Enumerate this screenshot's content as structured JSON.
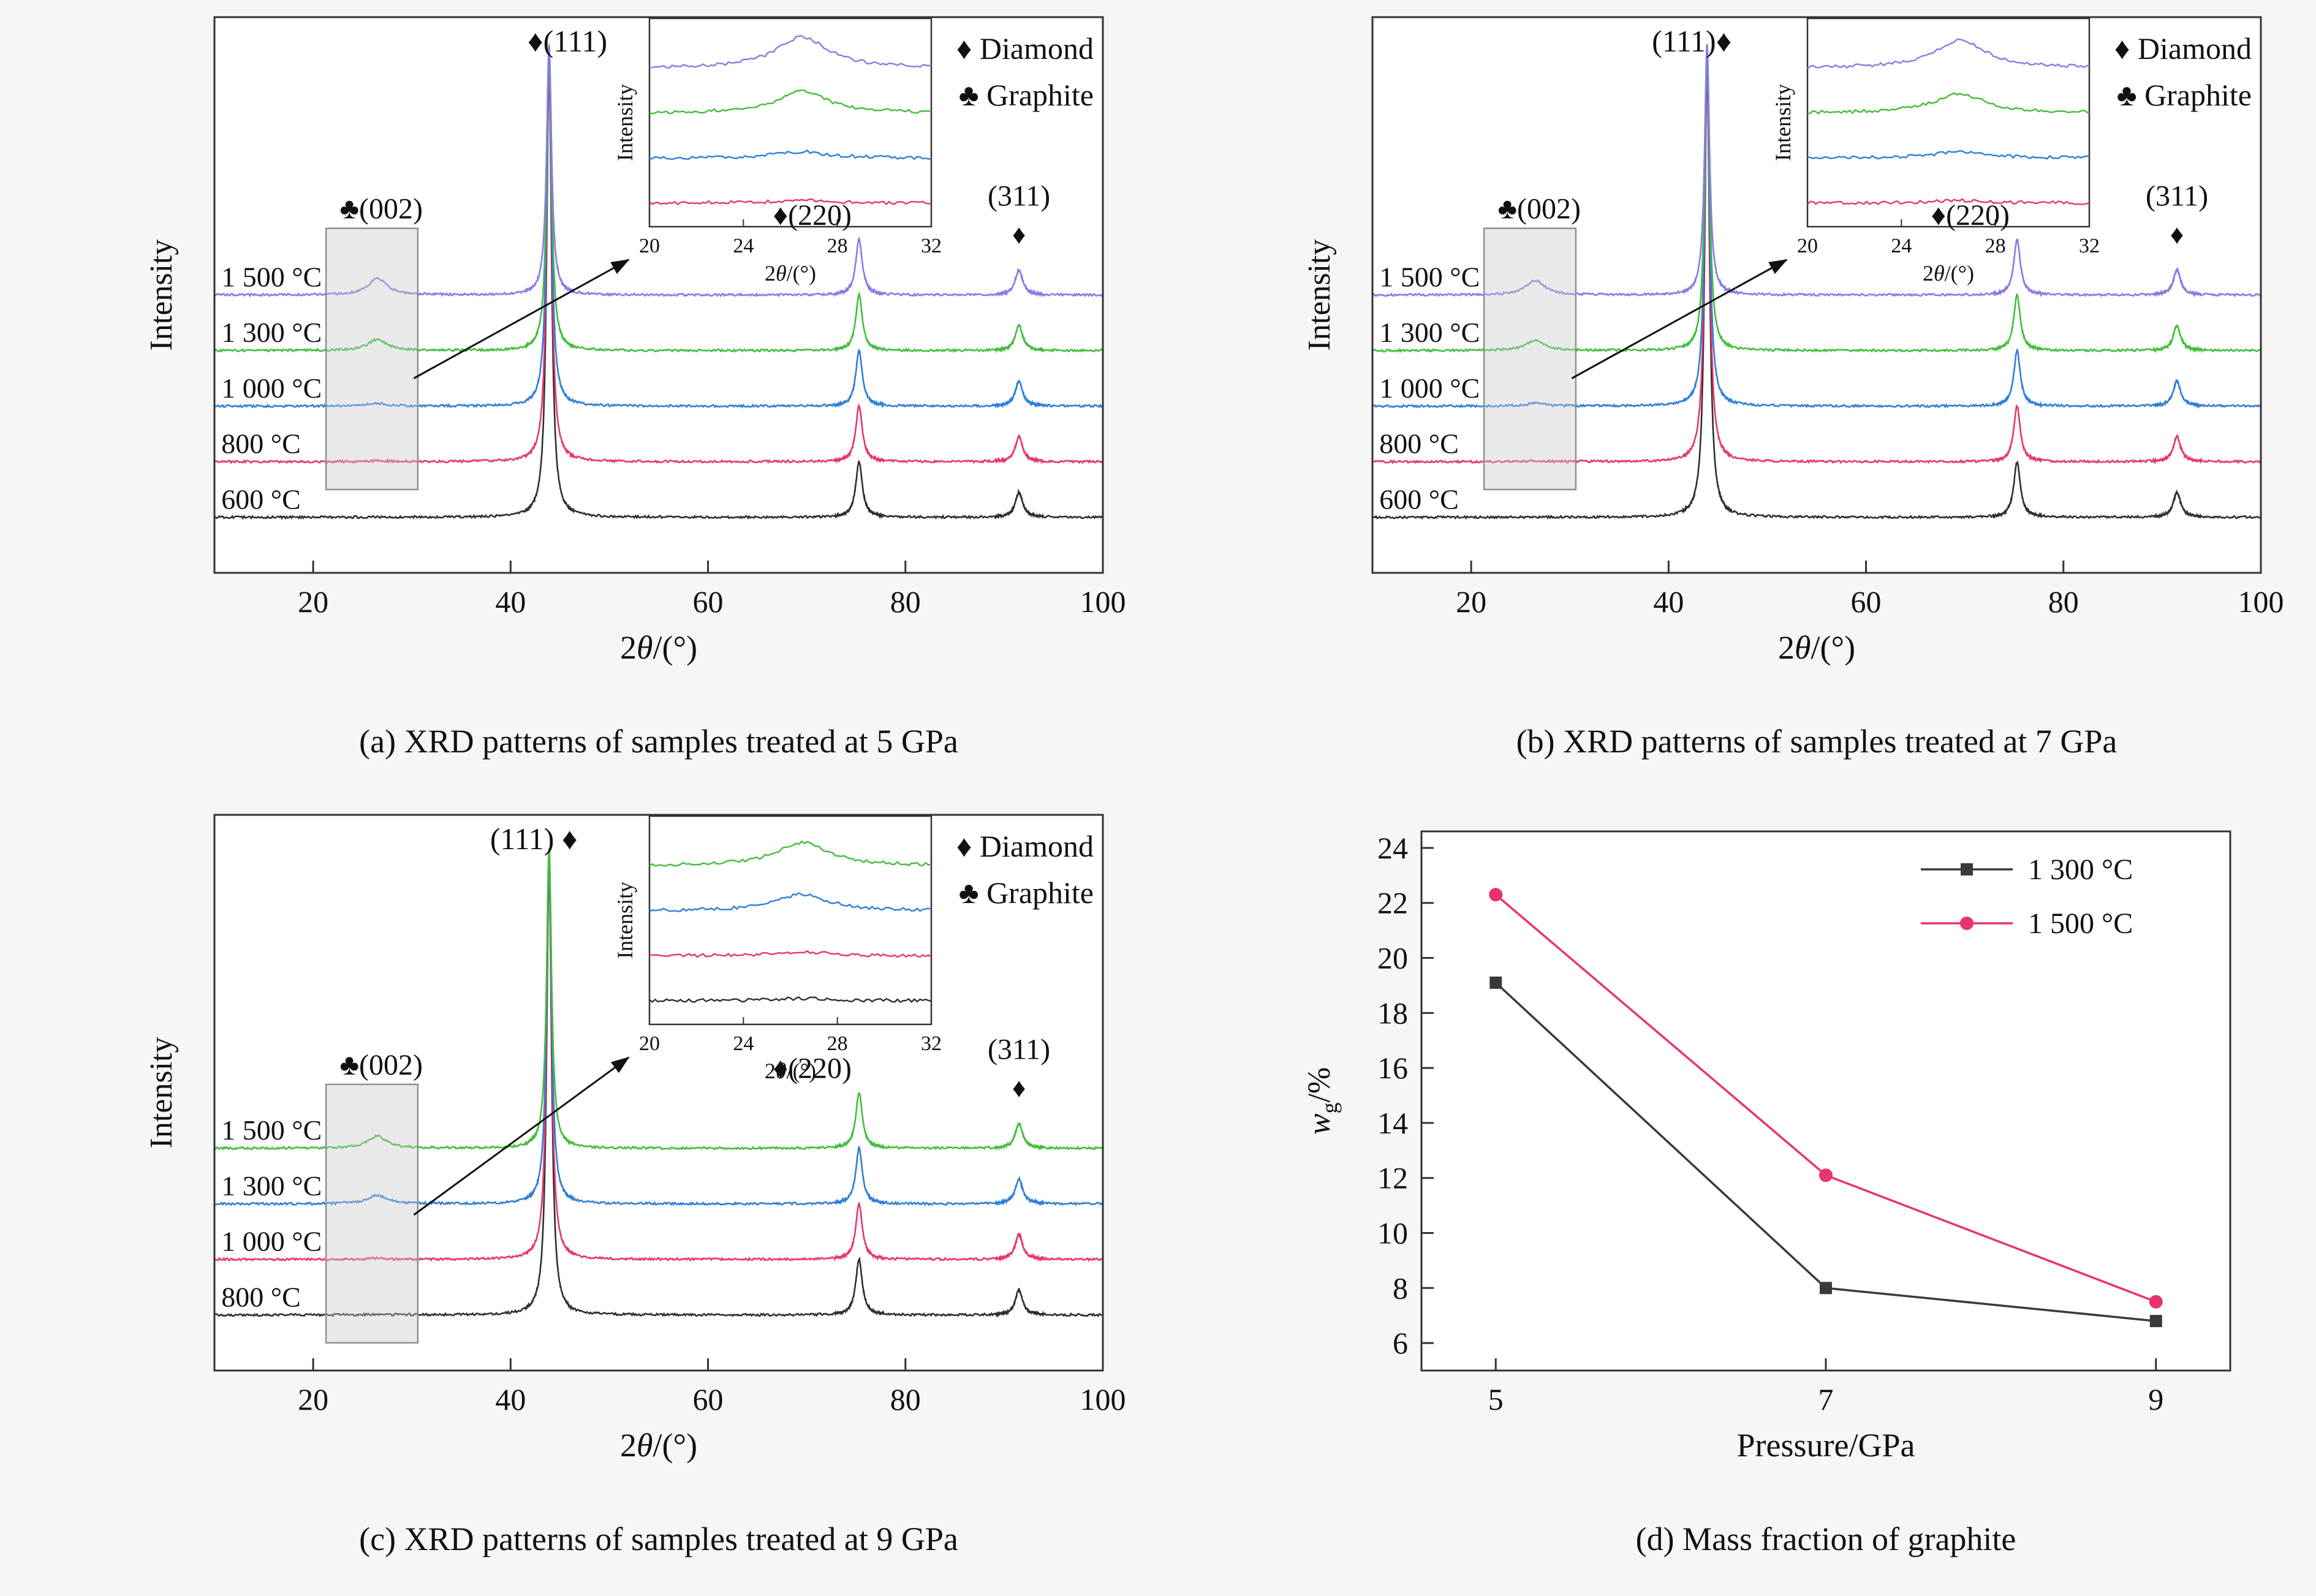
{
  "background": "#f6f6f6",
  "xrd_style": {
    "xlim": [
      10,
      100
    ],
    "xticks": [
      20,
      40,
      60,
      80,
      100
    ],
    "ylim": [
      0,
      10
    ],
    "peaks": {
      "d111": 43.9,
      "d220": 75.3,
      "d311": 91.5,
      "g002": 26.5
    },
    "widths": {
      "d111": 0.3,
      "d220": 0.4,
      "d311": 0.45,
      "g002": 1.15
    },
    "heights": {
      "d220": 1.0,
      "d311": 0.45,
      "tip111_base": 9.0,
      "tip111_slope": 0.1
    },
    "noise": 0.02,
    "inset": {
      "xlim": [
        20,
        32
      ],
      "xticks": [
        20,
        24,
        28,
        32
      ],
      "xlabel": "2θ/(°)",
      "ylabel": "Intensity"
    }
  },
  "chart_data": [
    {
      "key": "a",
      "type": "line",
      "subtype": "xrd-stack",
      "caption": "(a) XRD patterns of samples treated at 5 GPa",
      "xlabel": "2θ/(°)",
      "ylabel": "Intensity",
      "legend": [
        {
          "marker": "♦",
          "label": "Diamond"
        },
        {
          "marker": "♣",
          "label": "Graphite"
        }
      ],
      "peak_assignments": [
        {
          "phase": "diamond",
          "hkl": "(111)",
          "two_theta": 43.9
        },
        {
          "phase": "diamond",
          "hkl": "(220)",
          "two_theta": 75.3
        },
        {
          "phase": "diamond",
          "hkl": "(311)",
          "two_theta": 91.5
        },
        {
          "phase": "graphite",
          "hkl": "(002)",
          "two_theta": 26.5
        }
      ],
      "peak_labels": {
        "p111": "♦(111)",
        "p111_dx": 30,
        "p220": "♦(220)",
        "p311": "(311)",
        "p311_marker": "♦",
        "g002": "♣(002)"
      },
      "traces": [
        {
          "label": "1 500 °C",
          "color": "#8a7ae6",
          "offset": 5,
          "g002": 0.3
        },
        {
          "label": "1 300 °C",
          "color": "#43bd3c",
          "offset": 4,
          "g002": 0.2
        },
        {
          "label": "1 000 °C",
          "color": "#2e7fd8",
          "offset": 3,
          "g002": 0.05
        },
        {
          "label": "800 °C",
          "color": "#e8356e",
          "offset": 2,
          "g002": 0.015
        },
        {
          "label": "600 °C",
          "color": "#2f2f2f",
          "offset": 1,
          "g002": 0.005
        }
      ],
      "highlight": {
        "x0": 21.3,
        "x1": 30.6,
        "y0": 1.5,
        "y1": 6.2
      },
      "arrow_start": [
        30.2,
        3.5
      ],
      "inset_traces": 4
    },
    {
      "key": "b",
      "type": "line",
      "subtype": "xrd-stack",
      "caption": "(b) XRD patterns of samples treated at 7 GPa",
      "xlabel": "2θ/(°)",
      "ylabel": "Intensity",
      "legend": [
        {
          "marker": "♦",
          "label": "Diamond"
        },
        {
          "marker": "♣",
          "label": "Graphite"
        }
      ],
      "peak_assignments": [
        {
          "phase": "diamond",
          "hkl": "(111)",
          "two_theta": 43.9
        },
        {
          "phase": "diamond",
          "hkl": "(220)",
          "two_theta": 75.3
        },
        {
          "phase": "diamond",
          "hkl": "(311)",
          "two_theta": 91.5
        },
        {
          "phase": "graphite",
          "hkl": "(002)",
          "two_theta": 26.5
        }
      ],
      "peak_labels": {
        "p111": "(111)♦",
        "p111_dx": -25,
        "p220": "♦(220)",
        "p311": "(311)",
        "p311_marker": "♦",
        "g002": "♣(002)"
      },
      "traces": [
        {
          "label": "1 500 °C",
          "color": "#8a7ae6",
          "offset": 5,
          "g002": 0.26
        },
        {
          "label": "1 300 °C",
          "color": "#43bd3c",
          "offset": 4,
          "g002": 0.18
        },
        {
          "label": "1 000 °C",
          "color": "#2e7fd8",
          "offset": 3,
          "g002": 0.05
        },
        {
          "label": "800 °C",
          "color": "#e8356e",
          "offset": 2,
          "g002": 0.012
        },
        {
          "label": "600 °C",
          "color": "#2f2f2f",
          "offset": 1,
          "g002": 0.004
        }
      ],
      "highlight": {
        "x0": 21.3,
        "x1": 30.6,
        "y0": 1.5,
        "y1": 6.2
      },
      "arrow_start": [
        30.2,
        3.5
      ],
      "inset_traces": 4
    },
    {
      "key": "c",
      "type": "line",
      "subtype": "xrd-stack",
      "caption": "(c) XRD patterns of samples treated at 9 GPa",
      "xlabel": "2θ/(°)",
      "ylabel": "Intensity",
      "legend": [
        {
          "marker": "♦",
          "label": "Diamond"
        },
        {
          "marker": "♣",
          "label": "Graphite"
        }
      ],
      "peak_assignments": [
        {
          "phase": "diamond",
          "hkl": "(111)",
          "two_theta": 43.9
        },
        {
          "phase": "diamond",
          "hkl": "(220)",
          "two_theta": 75.3
        },
        {
          "phase": "diamond",
          "hkl": "(311)",
          "two_theta": 91.5
        },
        {
          "phase": "graphite",
          "hkl": "(002)",
          "two_theta": 26.5
        }
      ],
      "peak_labels": {
        "p111": "(111) ♦",
        "p111_dx": -25,
        "p220": "♦(220)",
        "p311": "(311)",
        "p311_marker": "♦",
        "g002": "♣(002)"
      },
      "traces": [
        {
          "label": "1 500 °C",
          "color": "#43bd3c",
          "offset": 4,
          "g002": 0.22
        },
        {
          "label": "1 300 °C",
          "color": "#2e7fd8",
          "offset": 3,
          "g002": 0.15
        },
        {
          "label": "1 000 °C",
          "color": "#e8356e",
          "offset": 2,
          "g002": 0.02
        },
        {
          "label": "800 °C",
          "color": "#2f2f2f",
          "offset": 1,
          "g002": 0.008
        }
      ],
      "highlight": {
        "x0": 21.3,
        "x1": 30.6,
        "y0": 0.5,
        "y1": 5.15
      },
      "arrow_start": [
        30.2,
        2.8
      ],
      "inset_traces": 4
    },
    {
      "key": "d",
      "type": "line",
      "subtype": "xy",
      "caption": "(d) Mass fraction of graphite",
      "xlabel": "Pressure/GPa",
      "ylabel": "wg/%",
      "ylabel_parts": [
        "w",
        "g",
        "/%"
      ],
      "xlim": [
        4.55,
        9.45
      ],
      "ylim": [
        5,
        24.6
      ],
      "xticks": [
        5,
        7,
        9
      ],
      "yticks": [
        6,
        8,
        10,
        12,
        14,
        16,
        18,
        20,
        22,
        24
      ],
      "series": [
        {
          "label": "1 300 °C",
          "color": "#3a3a3a",
          "marker": "square",
          "x": [
            5,
            7,
            9
          ],
          "y": [
            19.1,
            8.0,
            6.8
          ]
        },
        {
          "label": "1 500 °C",
          "color": "#e8336d",
          "marker": "circle",
          "x": [
            5,
            7,
            9
          ],
          "y": [
            22.3,
            12.1,
            7.5
          ]
        }
      ]
    }
  ]
}
